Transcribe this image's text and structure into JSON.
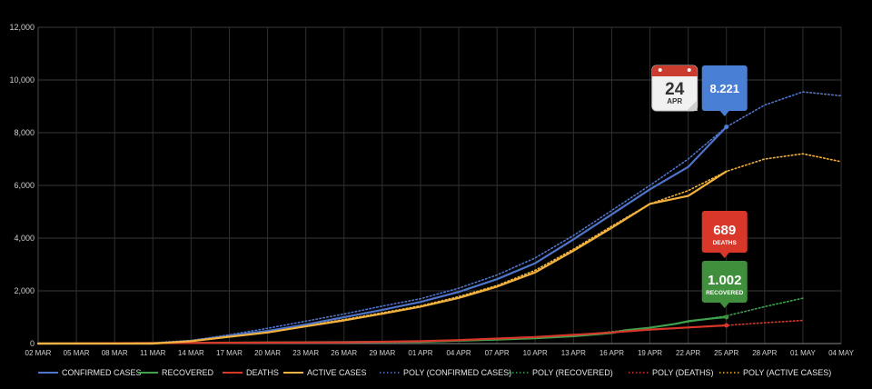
{
  "chart_data": {
    "type": "line",
    "title": "",
    "xlabel": "",
    "ylabel": "",
    "ylim": [
      0,
      12000
    ],
    "y_ticks": [
      "0",
      "2,000",
      "4,000",
      "6,000",
      "8,000",
      "10,000",
      "12,000"
    ],
    "y_tick_values": [
      0,
      2000,
      4000,
      6000,
      8000,
      10000,
      12000
    ],
    "x_ticks": [
      "02 MAR",
      "05 MAR",
      "08 MAR",
      "11 MAR",
      "14 MAR",
      "17 MAR",
      "20 MAR",
      "23 MAR",
      "26 MAR",
      "29 MAR",
      "01 APR",
      "04 APR",
      "07 APR",
      "10 APR",
      "13 APR",
      "16 APR",
      "19 APR",
      "22 APR",
      "25 APR",
      "28 APR",
      "01 MAY",
      "04 MAY"
    ],
    "x_days": 63,
    "grid": true,
    "legend_position": "bottom",
    "series": [
      {
        "name": "CONFIRMED CASES",
        "color": "#4f74c9",
        "style": "solid",
        "x": [
          0,
          9,
          12,
          15,
          18,
          21,
          24,
          27,
          30,
          33,
          36,
          39,
          42,
          45,
          48,
          51,
          54
        ],
        "values": [
          0,
          0,
          100,
          300,
          480,
          720,
          1000,
          1280,
          1580,
          1960,
          2440,
          3050,
          3950,
          4900,
          5850,
          6700,
          8221
        ]
      },
      {
        "name": "RECOVERED",
        "color": "#3fa24d",
        "style": "solid",
        "x": [
          0,
          30,
          36,
          39,
          42,
          45,
          46,
          48,
          50,
          51,
          53,
          54
        ],
        "values": [
          0,
          70,
          150,
          200,
          280,
          400,
          500,
          600,
          750,
          850,
          960,
          1002
        ]
      },
      {
        "name": "DEATHS",
        "color": "#d8372a",
        "style": "solid",
        "x": [
          0,
          24,
          30,
          33,
          36,
          39,
          42,
          45,
          48,
          51,
          54
        ],
        "values": [
          0,
          50,
          90,
          130,
          190,
          250,
          330,
          420,
          530,
          610,
          689
        ]
      },
      {
        "name": "ACTIVE CASES",
        "color": "#f2b23e",
        "style": "solid",
        "x": [
          0,
          9,
          12,
          15,
          18,
          21,
          24,
          27,
          30,
          33,
          36,
          39,
          42,
          45,
          48,
          51,
          54
        ],
        "values": [
          0,
          0,
          90,
          260,
          420,
          650,
          880,
          1130,
          1400,
          1730,
          2160,
          2700,
          3520,
          4390,
          5300,
          5600,
          6530
        ]
      },
      {
        "name": "POLY (CONFIRMED CASES)",
        "color": "#4f74c9",
        "style": "dotted",
        "x": [
          0,
          9,
          12,
          15,
          18,
          21,
          24,
          27,
          30,
          33,
          36,
          39,
          42,
          45,
          48,
          51,
          54,
          57,
          60,
          63
        ],
        "values": [
          0,
          30,
          120,
          330,
          580,
          850,
          1120,
          1420,
          1700,
          2100,
          2600,
          3250,
          4100,
          5050,
          6000,
          7000,
          8221,
          9050,
          9550,
          9400
        ]
      },
      {
        "name": "POLY (RECOVERED)",
        "color": "#3fa24d",
        "style": "dotted",
        "x": [
          0,
          30,
          36,
          42,
          48,
          54,
          57,
          60
        ],
        "values": [
          0,
          60,
          150,
          300,
          600,
          1050,
          1400,
          1720
        ]
      },
      {
        "name": "POLY (DEATHS)",
        "color": "#d8372a",
        "style": "dotted",
        "x": [
          0,
          24,
          30,
          36,
          42,
          48,
          54,
          57,
          60
        ],
        "values": [
          0,
          40,
          90,
          180,
          320,
          520,
          689,
          790,
          880
        ]
      },
      {
        "name": "POLY (ACTIVE CASES)",
        "color": "#f2b23e",
        "style": "dotted",
        "x": [
          0,
          9,
          12,
          15,
          18,
          21,
          24,
          27,
          30,
          33,
          36,
          39,
          42,
          45,
          48,
          51,
          54,
          57,
          60,
          63
        ],
        "values": [
          0,
          20,
          100,
          280,
          460,
          680,
          910,
          1170,
          1430,
          1780,
          2200,
          2780,
          3580,
          4450,
          5300,
          5800,
          6530,
          7000,
          7200,
          6900
        ]
      }
    ],
    "annotations": [
      {
        "kind": "date",
        "day": "24",
        "month": "APR",
        "x": 54
      },
      {
        "kind": "value",
        "label": "8.221",
        "sublabel": "",
        "color": "#4a7fd6",
        "series": "CONFIRMED CASES",
        "x": 54,
        "y": 8221
      },
      {
        "kind": "value",
        "label": "689",
        "sublabel": "DEATHS",
        "color": "#d8372a",
        "series": "DEATHS",
        "x": 54,
        "y": 689
      },
      {
        "kind": "value",
        "label": "1.002",
        "sublabel": "RECOVERED",
        "color": "#3f8f3c",
        "series": "RECOVERED",
        "x": 54,
        "y": 1002
      }
    ]
  }
}
